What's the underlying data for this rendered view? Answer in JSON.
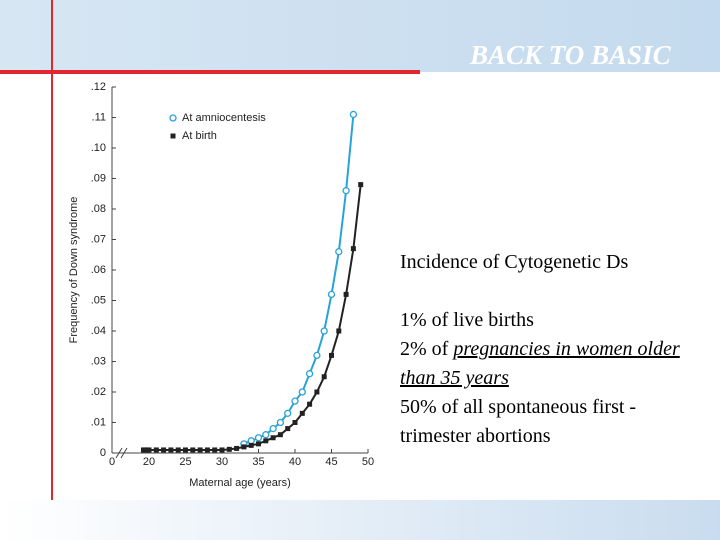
{
  "header": {
    "banner": "BACK TO BASIC"
  },
  "text": {
    "heading": "Incidence of Cytogenetic Ds",
    "items": [
      "1% of live births",
      {
        "plain": "2% of ",
        "underlined": "pregnancies in women older than 35 years"
      },
      "50% of all spontaneous first -trimester abortions"
    ]
  },
  "chart_data": {
    "type": "line",
    "x_label": "Maternal age (years)",
    "y_label": "Frequency of Down syndrome",
    "xlim": [
      0,
      50
    ],
    "axis_break": [
      0,
      20
    ],
    "xticks": [
      0,
      20,
      25,
      30,
      35,
      40,
      45,
      50
    ],
    "ylim": [
      0,
      0.12
    ],
    "yticks": [
      {
        "value": 0,
        "label": "0"
      },
      {
        "value": 0.01,
        "label": ".01"
      },
      {
        "value": 0.02,
        "label": ".02"
      },
      {
        "value": 0.03,
        "label": ".03"
      },
      {
        "value": 0.04,
        "label": ".04"
      },
      {
        "value": 0.05,
        "label": ".05"
      },
      {
        "value": 0.06,
        "label": ".06"
      },
      {
        "value": 0.07,
        "label": ".07"
      },
      {
        "value": 0.08,
        "label": ".08"
      },
      {
        "value": 0.09,
        "label": ".09"
      },
      {
        "value": 0.1,
        "label": ".10"
      },
      {
        "value": 0.11,
        "label": ".11"
      },
      {
        "value": 0.12,
        "label": ".12"
      }
    ],
    "legend": "top-left",
    "series": [
      {
        "name": "At amniocentesis",
        "color": "#29a3d6",
        "marker": "circle",
        "x": [
          33,
          34,
          35,
          36,
          37,
          38,
          39,
          40,
          41,
          42,
          43,
          44,
          45,
          46,
          47,
          48
        ],
        "values": [
          0.003,
          0.004,
          0.005,
          0.006,
          0.008,
          0.01,
          0.013,
          0.017,
          0.02,
          0.026,
          0.032,
          0.04,
          0.052,
          0.066,
          0.086,
          0.111
        ]
      },
      {
        "name": "At birth",
        "color": "#222222",
        "marker": "square",
        "x": [
          17,
          18,
          19,
          20,
          21,
          22,
          23,
          24,
          25,
          26,
          27,
          28,
          29,
          30,
          31,
          32,
          33,
          34,
          35,
          36,
          37,
          38,
          39,
          40,
          41,
          42,
          43,
          44,
          45,
          46,
          47,
          48,
          49
        ],
        "values": [
          0.001,
          0.001,
          0.001,
          0.001,
          0.001,
          0.001,
          0.001,
          0.001,
          0.001,
          0.001,
          0.001,
          0.001,
          0.001,
          0.001,
          0.0012,
          0.0015,
          0.002,
          0.0025,
          0.003,
          0.004,
          0.005,
          0.006,
          0.008,
          0.01,
          0.013,
          0.016,
          0.02,
          0.025,
          0.032,
          0.04,
          0.052,
          0.067,
          0.088
        ]
      }
    ]
  }
}
